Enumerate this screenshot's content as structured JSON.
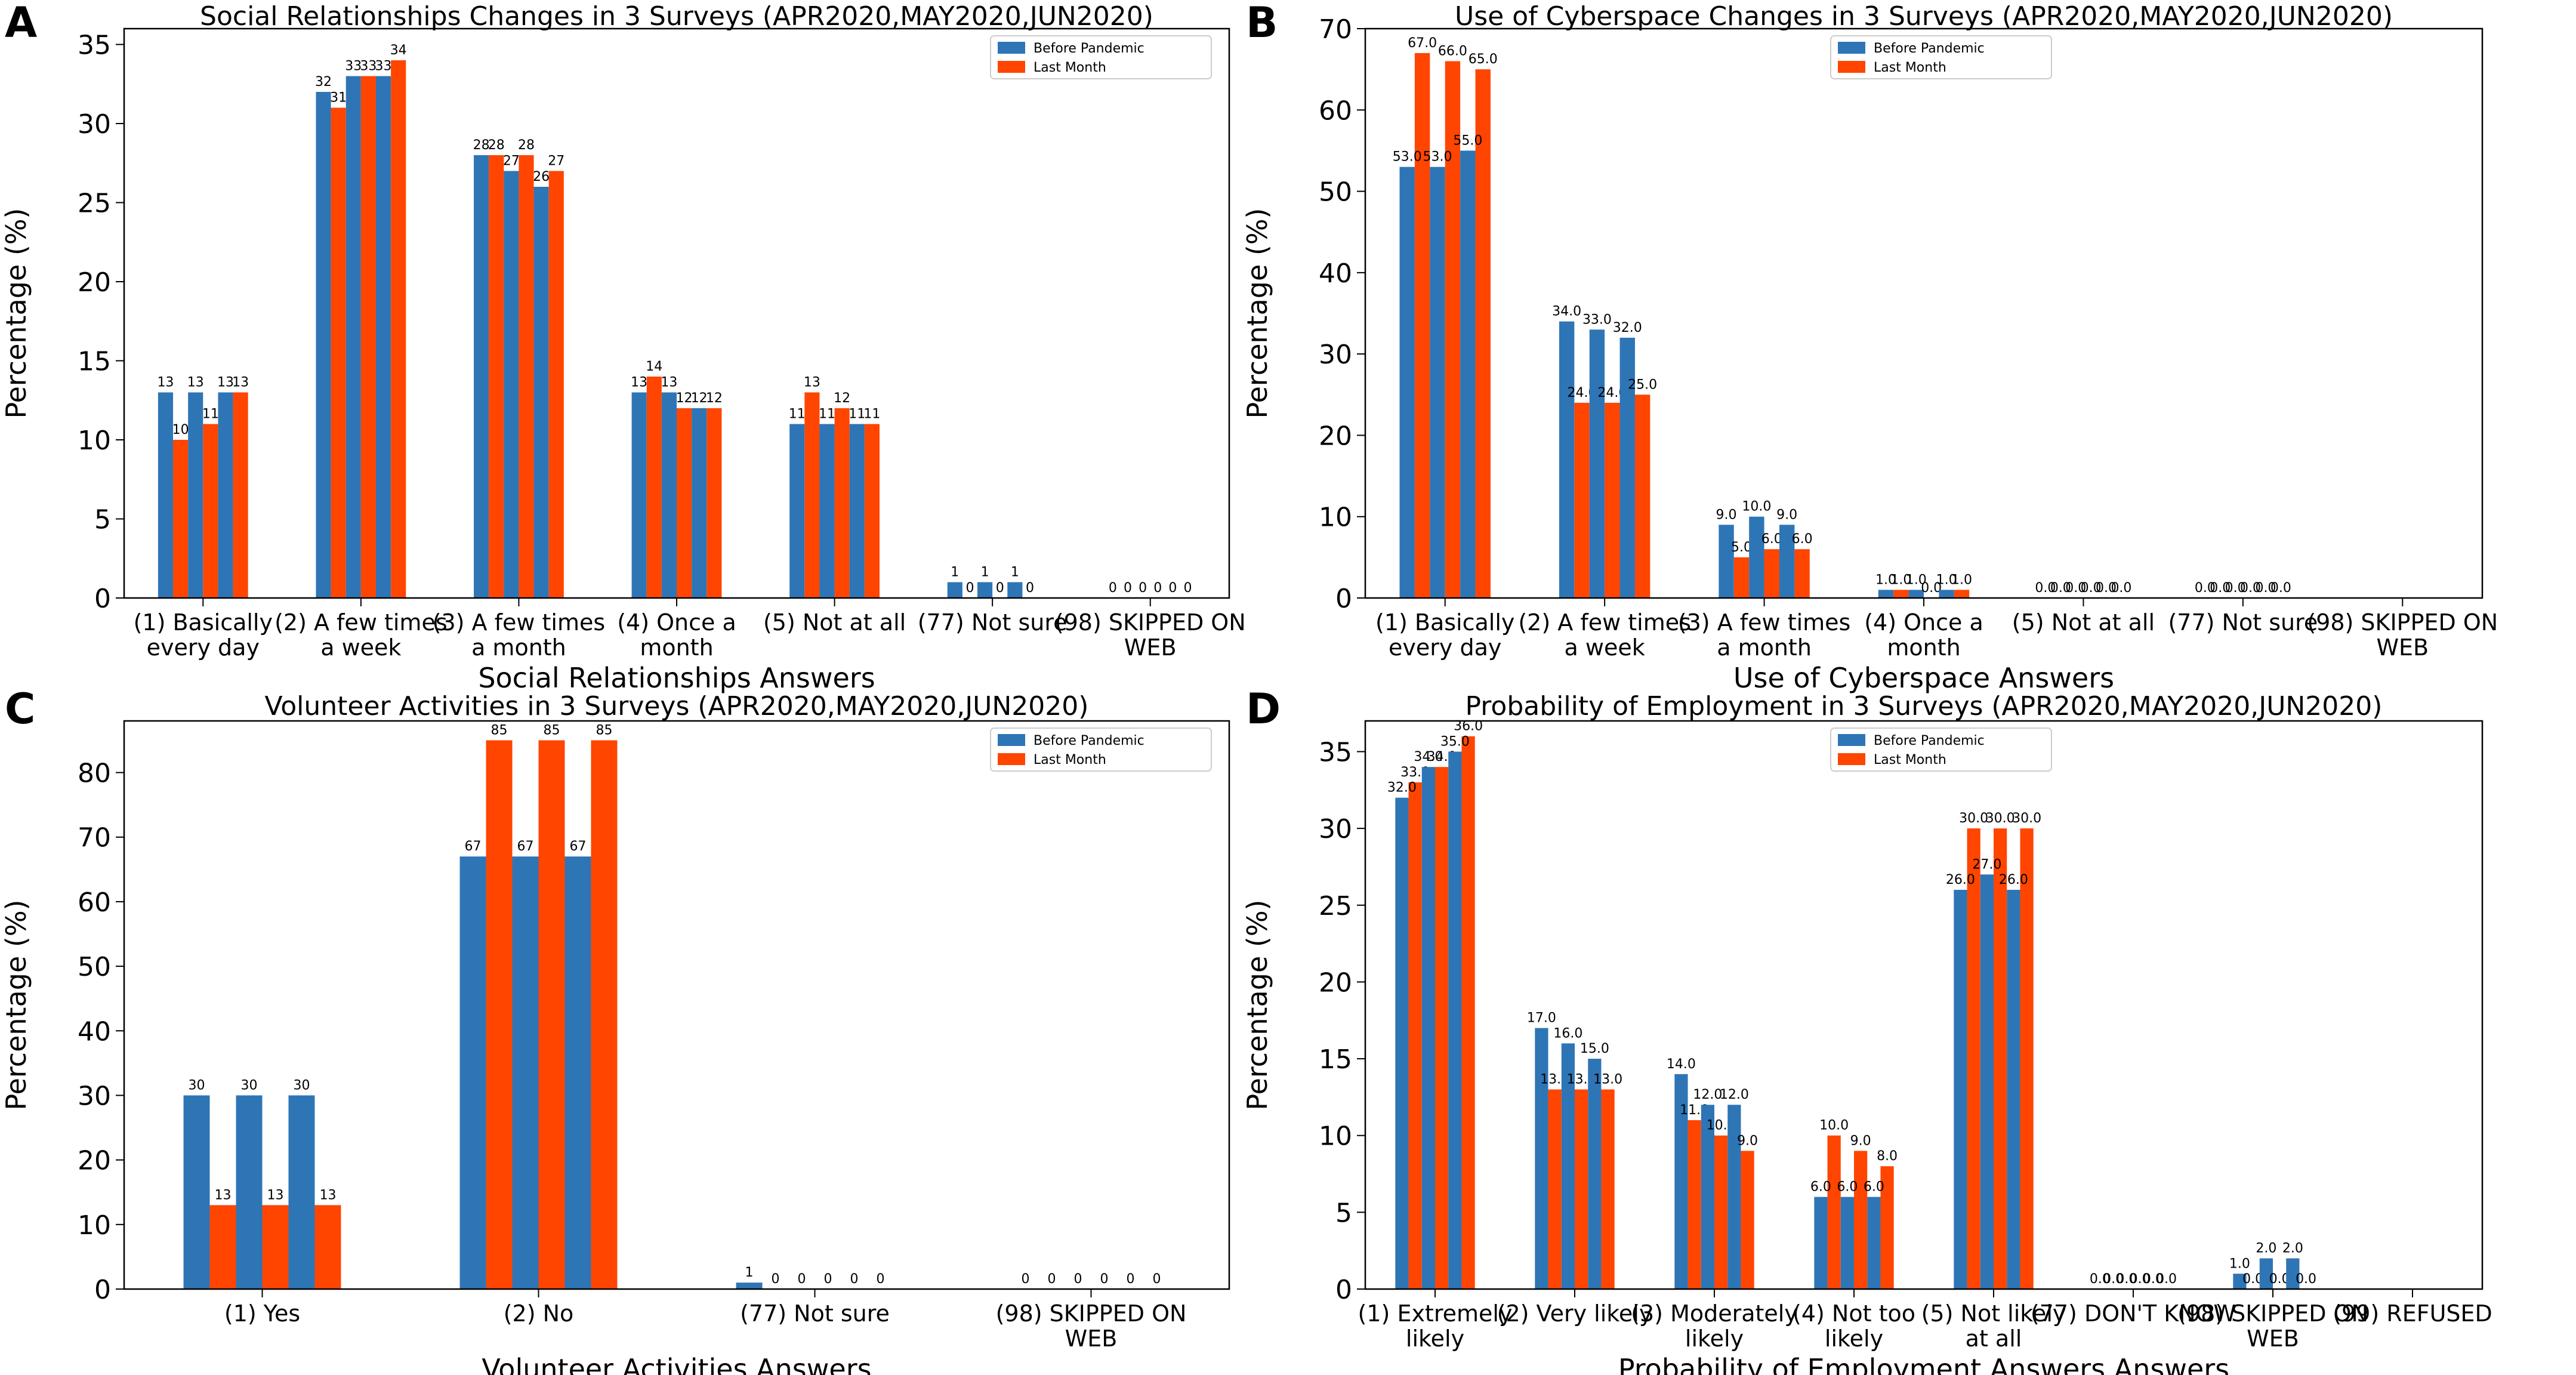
{
  "colors": {
    "before": "#2E75B6",
    "last": "#FF4500",
    "axis": "#000000"
  },
  "legend": {
    "before_label": "Before Pandemic",
    "last_label": "Last Month"
  },
  "chart_data": [
    {
      "panel_letter": "A",
      "type": "bar",
      "title": "Social Relationships Changes in 3 Surveys (APR2020,MAY2020,JUN2020)",
      "xlabel": "Social Relationships Answers",
      "ylabel": "Percentage (%)",
      "ylim": [
        0,
        36
      ],
      "yticks": [
        0,
        5,
        10,
        15,
        20,
        25,
        30,
        35
      ],
      "ytick_labels": [
        "0",
        "5",
        "10",
        "15",
        "20",
        "25",
        "30",
        "35"
      ],
      "categories": [
        [
          "(1) Basically",
          "every day"
        ],
        [
          "(2) A few times",
          "a week"
        ],
        [
          "(3) A few times",
          "a month"
        ],
        [
          "(4) Once a",
          "month"
        ],
        [
          "(5) Not at all"
        ],
        [
          "(77) Not sure"
        ],
        [
          "(98) SKIPPED ON",
          "WEB"
        ]
      ],
      "series": [
        {
          "name": "Before Pandemic",
          "surveys": [
            [
              13,
              13,
              13
            ],
            [
              32,
              33,
              33
            ],
            [
              28,
              27,
              26
            ],
            [
              13,
              13,
              12
            ],
            [
              11,
              11,
              11
            ],
            [
              1,
              1,
              1
            ],
            [
              0,
              0,
              0
            ]
          ]
        },
        {
          "name": "Last Month",
          "surveys": [
            [
              10,
              11,
              13
            ],
            [
              31,
              33,
              34
            ],
            [
              28,
              28,
              27
            ],
            [
              14,
              12,
              12
            ],
            [
              13,
              12,
              11
            ],
            [
              0,
              0,
              0
            ],
            [
              0,
              0,
              0
            ]
          ]
        }
      ],
      "value_labels": {
        "before": [
          [
            "13",
            "13",
            "13"
          ],
          [
            "32",
            "33",
            "33"
          ],
          [
            "28",
            "27",
            "26"
          ],
          [
            "13",
            "13",
            "12"
          ],
          [
            "11",
            "11",
            "11"
          ],
          [
            "1",
            "1",
            "1"
          ],
          [
            "0",
            "0",
            "0"
          ]
        ],
        "last": [
          [
            "10",
            "11",
            "13"
          ],
          [
            "31",
            "33",
            "34"
          ],
          [
            "28",
            "28",
            "27"
          ],
          [
            "14",
            "12",
            "12"
          ],
          [
            "13",
            "12",
            "11"
          ],
          [
            "0",
            "0",
            "0"
          ],
          [
            "0",
            "0",
            "0"
          ]
        ]
      }
    },
    {
      "panel_letter": "B",
      "type": "bar",
      "title": "Use of Cyberspace Changes in 3 Surveys (APR2020,MAY2020,JUN2020)",
      "xlabel": "Use of Cyberspace Answers",
      "ylabel": "Percentage (%)",
      "ylim": [
        0,
        70
      ],
      "yticks": [
        0,
        10,
        20,
        30,
        40,
        50,
        60,
        70
      ],
      "ytick_labels": [
        "0",
        "10",
        "20",
        "30",
        "40",
        "50",
        "60",
        "70"
      ],
      "categories": [
        [
          "(1) Basically",
          "every day"
        ],
        [
          "(2) A few times",
          "a week"
        ],
        [
          "(3) A few times",
          "a month"
        ],
        [
          "(4) Once a",
          "month"
        ],
        [
          "(5) Not at all"
        ],
        [
          "(77) Not sure"
        ],
        [
          "(98) SKIPPED ON",
          "WEB"
        ]
      ],
      "series": [
        {
          "name": "Before Pandemic",
          "surveys": [
            [
              53,
              53,
              55
            ],
            [
              34,
              33,
              32
            ],
            [
              9,
              10,
              9
            ],
            [
              1,
              1,
              1
            ],
            [
              0,
              0,
              0
            ],
            [
              0,
              0,
              0
            ],
            [
              0,
              0,
              0
            ]
          ]
        },
        {
          "name": "Last Month",
          "surveys": [
            [
              67,
              66,
              65
            ],
            [
              24,
              24,
              25
            ],
            [
              5,
              6,
              6
            ],
            [
              1,
              0,
              1
            ],
            [
              0,
              0,
              0
            ],
            [
              0,
              0,
              0
            ],
            [
              0,
              0,
              0
            ]
          ]
        }
      ],
      "value_labels": {
        "before": [
          [
            "53.0",
            "53.0",
            "55.0"
          ],
          [
            "34.0",
            "33.0",
            "32.0"
          ],
          [
            "9.0",
            "10.0",
            "9.0"
          ],
          [
            "1.0",
            "1.0",
            "1.0"
          ],
          [
            "0.0",
            "0.0",
            "0.0"
          ],
          [
            "0.0",
            "0.0",
            "0.0"
          ],
          [
            "",
            "",
            ""
          ]
        ],
        "last": [
          [
            "67.0",
            "66.0",
            "65.0"
          ],
          [
            "24.0",
            "24.0",
            "25.0"
          ],
          [
            "5.0",
            "6.0",
            "6.0"
          ],
          [
            "1.0",
            "0.0",
            "1.0"
          ],
          [
            "0.0",
            "0.0",
            "0.0"
          ],
          [
            "0.0",
            "0.0",
            "0.0"
          ],
          [
            "",
            "",
            ""
          ]
        ]
      }
    },
    {
      "panel_letter": "C",
      "type": "bar",
      "title": "Volunteer Activities in 3 Surveys (APR2020,MAY2020,JUN2020)",
      "xlabel": "Volunteer Activities Answers",
      "ylabel": "Percentage (%)",
      "ylim": [
        0,
        88
      ],
      "yticks": [
        0,
        10,
        20,
        30,
        40,
        50,
        60,
        70,
        80
      ],
      "ytick_labels": [
        "0",
        "10",
        "20",
        "30",
        "40",
        "50",
        "60",
        "70",
        "80"
      ],
      "categories": [
        [
          "(1) Yes"
        ],
        [
          "(2) No"
        ],
        [
          "(77) Not sure"
        ],
        [
          "(98) SKIPPED ON",
          "WEB"
        ]
      ],
      "series": [
        {
          "name": "Before Pandemic",
          "surveys": [
            [
              30,
              30,
              30
            ],
            [
              67,
              67,
              67
            ],
            [
              1,
              0,
              0
            ],
            [
              0,
              0,
              0
            ]
          ]
        },
        {
          "name": "Last Month",
          "surveys": [
            [
              13,
              13,
              13
            ],
            [
              85,
              85,
              85
            ],
            [
              0,
              0,
              0
            ],
            [
              0,
              0,
              0
            ]
          ]
        }
      ],
      "value_labels": {
        "before": [
          [
            "30",
            "30",
            "30"
          ],
          [
            "67",
            "67",
            "67"
          ],
          [
            "1",
            "0",
            "0"
          ],
          [
            "0",
            "0",
            "0"
          ]
        ],
        "last": [
          [
            "13",
            "13",
            "13"
          ],
          [
            "85",
            "85",
            "85"
          ],
          [
            "0",
            "0",
            "0"
          ],
          [
            "0",
            "0",
            "0"
          ]
        ]
      }
    },
    {
      "panel_letter": "D",
      "type": "bar",
      "title": "Probability of Employment in 3 Surveys (APR2020,MAY2020,JUN2020)",
      "xlabel": "Probability of Employment Answers  Answers",
      "ylabel": "Percentage (%)",
      "ylim": [
        0,
        37
      ],
      "yticks": [
        0,
        5,
        10,
        15,
        20,
        25,
        30,
        35
      ],
      "ytick_labels": [
        "0",
        "5",
        "10",
        "15",
        "20",
        "25",
        "30",
        "35"
      ],
      "categories": [
        [
          "(1) Extremely",
          "likely"
        ],
        [
          "(2) Very likely"
        ],
        [
          "(3) Moderately",
          "likely"
        ],
        [
          "(4) Not too",
          "likely"
        ],
        [
          "(5) Not likely",
          "at all"
        ],
        [
          "(77) DON'T KNOW"
        ],
        [
          "(98) SKIPPED ON",
          "WEB"
        ],
        [
          "(99) REFUSED"
        ]
      ],
      "series": [
        {
          "name": "Before Pandemic",
          "surveys": [
            [
              32,
              34,
              35
            ],
            [
              17,
              16,
              15
            ],
            [
              14,
              12,
              12
            ],
            [
              6,
              6,
              6
            ],
            [
              26,
              27,
              26
            ],
            [
              0,
              0,
              0
            ],
            [
              1,
              2,
              2
            ],
            [
              0,
              0,
              0
            ]
          ]
        },
        {
          "name": "Last Month",
          "surveys": [
            [
              33,
              34,
              36
            ],
            [
              13,
              13,
              13
            ],
            [
              11,
              10,
              9
            ],
            [
              10,
              9,
              8
            ],
            [
              30,
              30,
              30
            ],
            [
              0,
              0,
              0
            ],
            [
              0,
              0,
              0
            ],
            [
              0,
              0,
              0
            ]
          ]
        }
      ],
      "value_labels": {
        "before": [
          [
            "32.0",
            "34.0",
            "35.0"
          ],
          [
            "17.0",
            "16.0",
            "15.0"
          ],
          [
            "14.0",
            "12.0",
            "12.0"
          ],
          [
            "6.0",
            "6.0",
            "6.0"
          ],
          [
            "26.0",
            "27.0",
            "26.0"
          ],
          [
            "0.0",
            "0.0",
            "0.0"
          ],
          [
            "1.0",
            "2.0",
            "2.0"
          ],
          [
            "",
            "",
            ""
          ]
        ],
        "last": [
          [
            "33.0",
            "34.0",
            "36.0"
          ],
          [
            "13.0",
            "13.0",
            "13.0"
          ],
          [
            "11.0",
            "10.0",
            "9.0"
          ],
          [
            "10.0",
            "9.0",
            "8.0"
          ],
          [
            "30.0",
            "30.0",
            "30.0"
          ],
          [
            "0.0",
            "0.0",
            "0.0"
          ],
          [
            "0.0",
            "0.0",
            "0.0"
          ],
          [
            "",
            "",
            ""
          ]
        ]
      }
    }
  ]
}
